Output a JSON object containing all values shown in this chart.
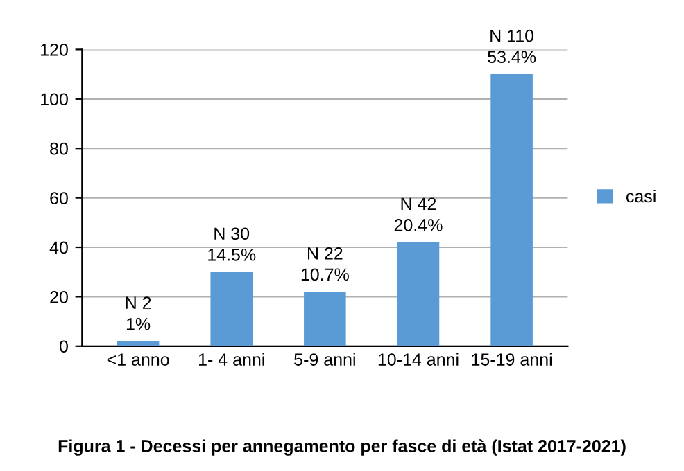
{
  "chart_data": {
    "type": "bar",
    "categories": [
      "<1 anno",
      "1- 4 anni",
      "5-9 anni",
      "10-14 anni",
      "15-19 anni"
    ],
    "series": [
      {
        "name": "casi",
        "color": "#5b9bd5",
        "values": [
          2,
          30,
          22,
          42,
          110
        ],
        "value_labels": [
          "N 2\n1%",
          "N 30\n14.5%",
          "N 22\n10.7%",
          "N 42\n20.4%",
          "N 110\n53.4%"
        ]
      }
    ],
    "ylim": [
      0,
      120
    ],
    "yticks": [
      0,
      20,
      40,
      60,
      80,
      100,
      120
    ],
    "grid": "y",
    "legend": "right",
    "annotations": [
      "Figura 1 - Decessi per annegamento per fasce di età (Istat 2017-2021)"
    ]
  }
}
